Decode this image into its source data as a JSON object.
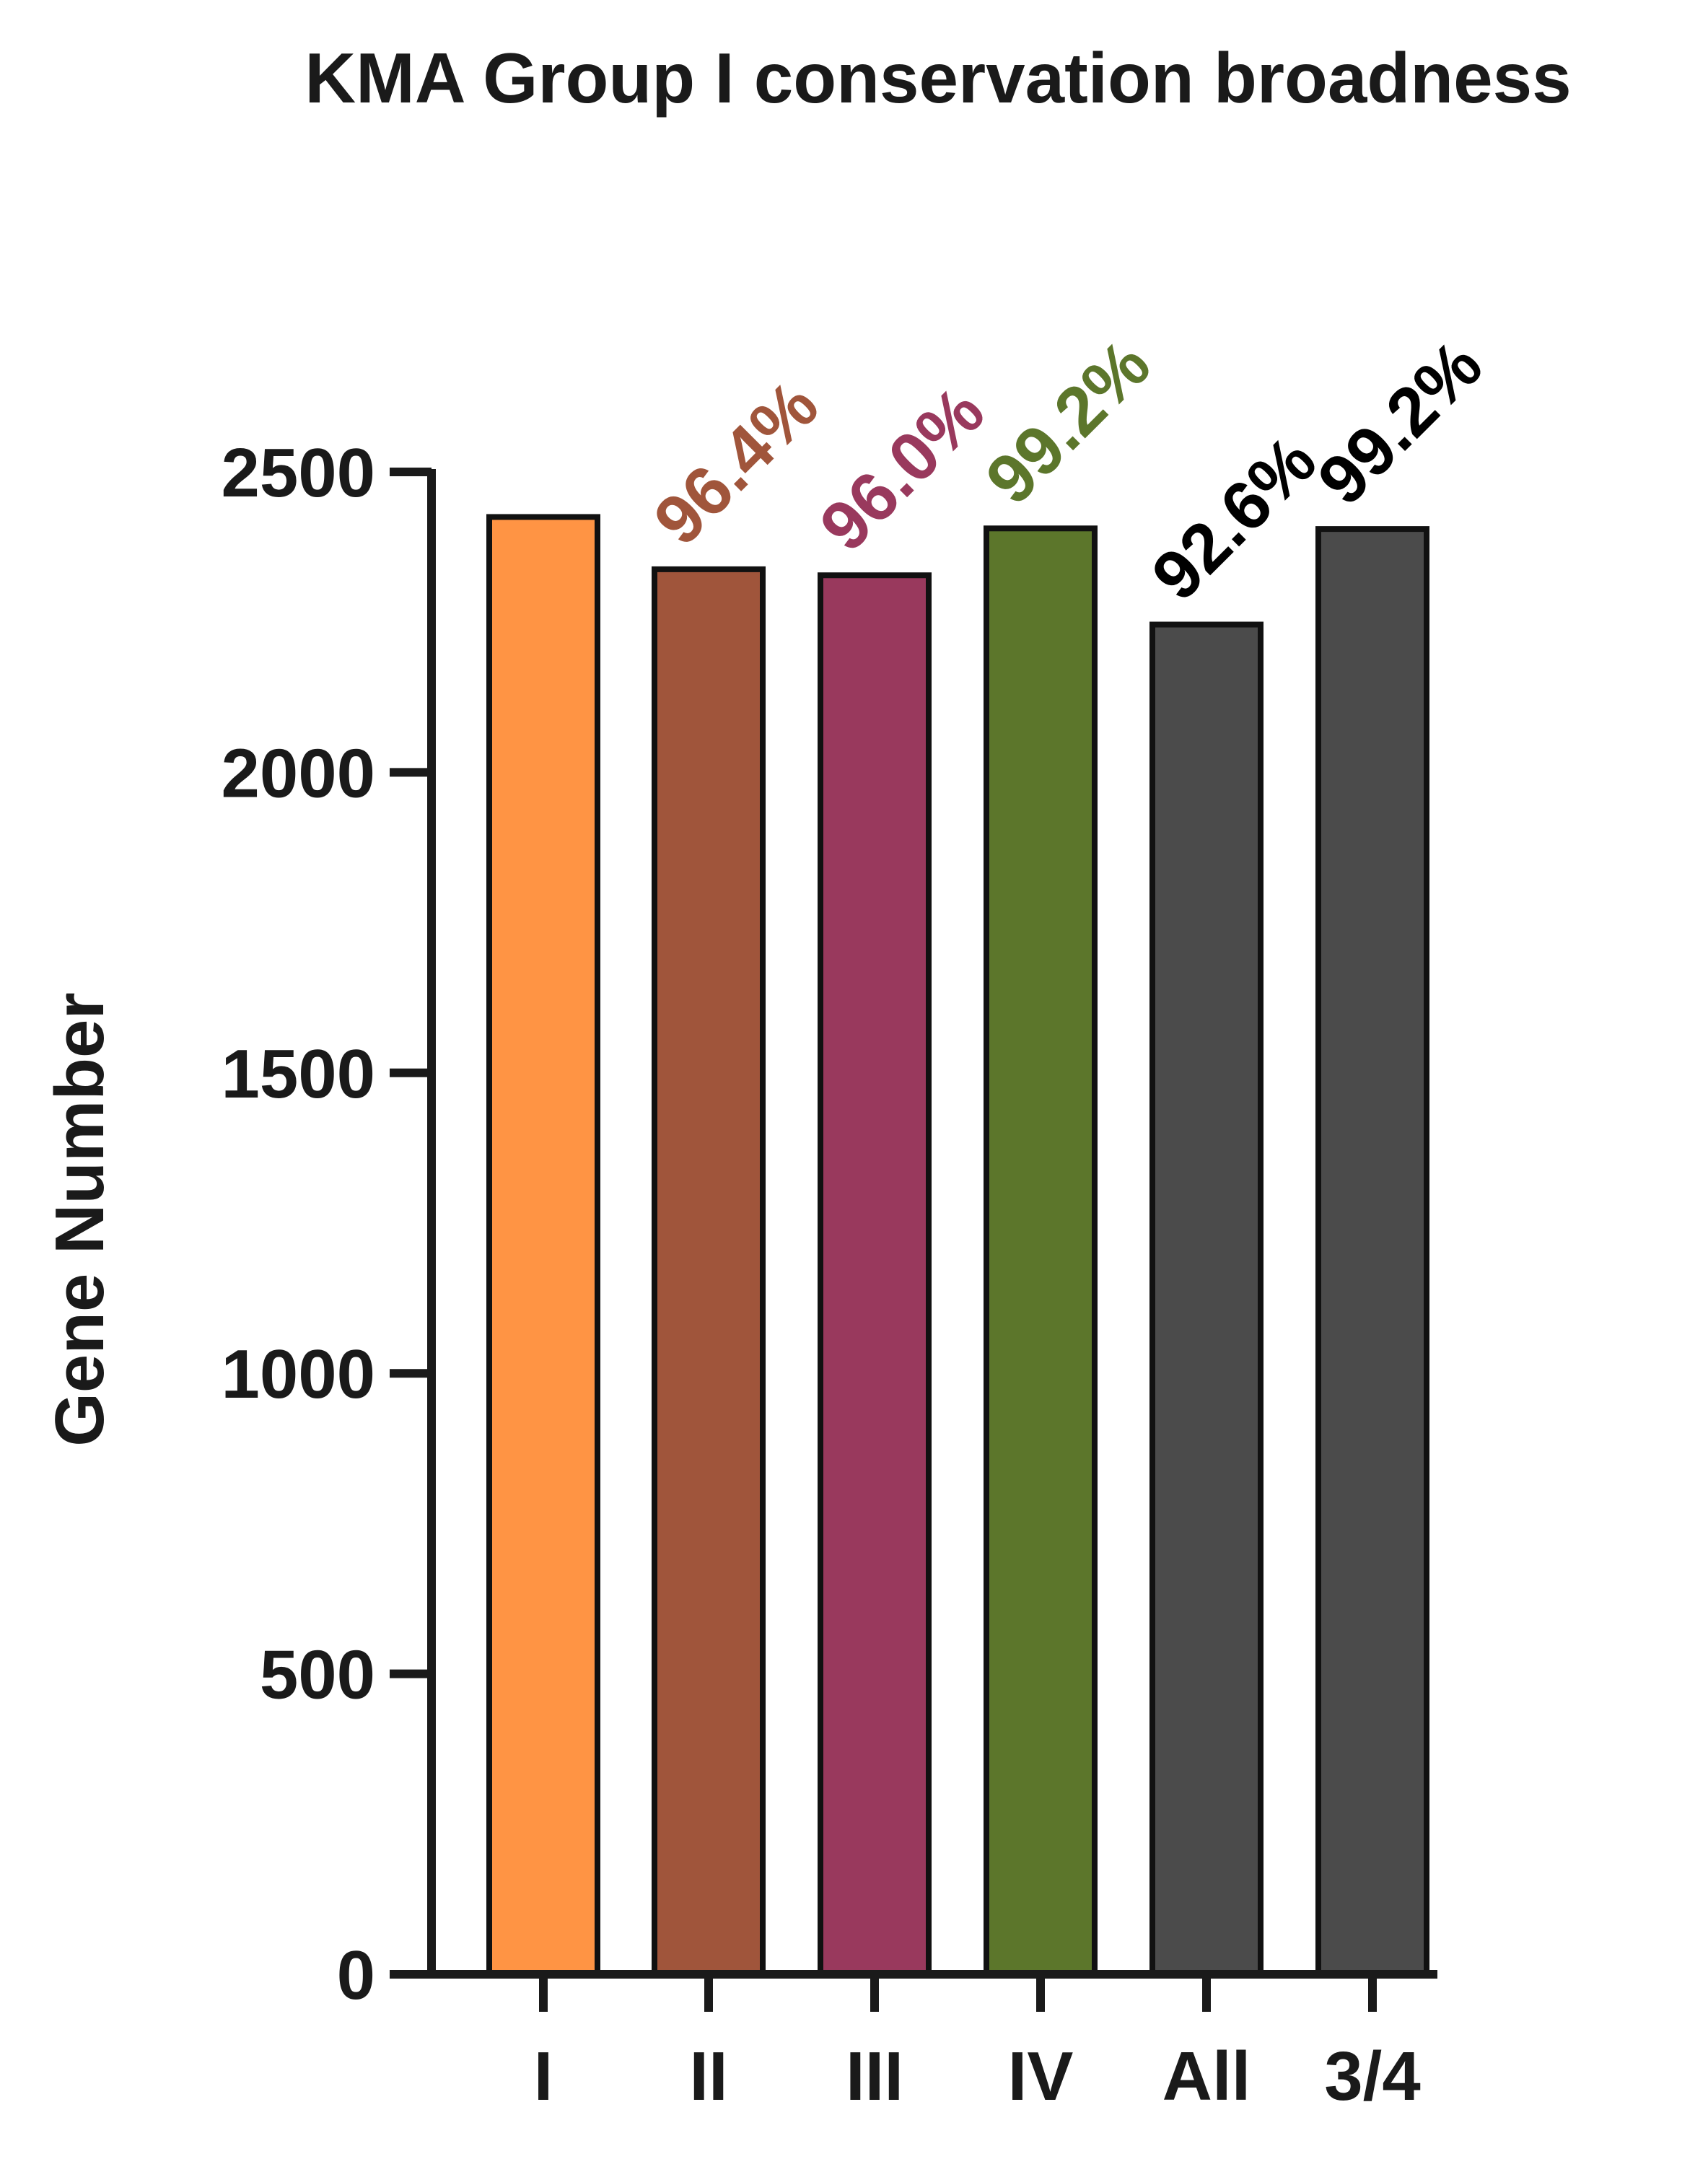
{
  "chart_data": {
    "type": "bar",
    "title": "KMA Group I conservation broadness",
    "xlabel": "",
    "ylabel": "Gene Number",
    "ylim": [
      0,
      2500
    ],
    "yticks": [
      "0",
      "500",
      "1000",
      "1500",
      "2000",
      "2500"
    ],
    "categories": [
      "I",
      "II",
      "III",
      "IV",
      "All",
      "3/4"
    ],
    "values": [
      2425,
      2338,
      2328,
      2406,
      2246,
      2405
    ],
    "bar_colors": [
      "#ff9444",
      "#a0553b",
      "#99395d",
      "#5c762b",
      "#4b4b4b",
      "#4b4b4b"
    ],
    "annotations": [
      {
        "category": "II",
        "text": "96.4%",
        "color": "#a0553b"
      },
      {
        "category": "III",
        "text": "96.0%",
        "color": "#99395d"
      },
      {
        "category": "IV",
        "text": "99.2%",
        "color": "#5c762b"
      },
      {
        "category": "All",
        "text": "92.6%",
        "color": "#000000"
      },
      {
        "category": "3/4",
        "text": "99.2%",
        "color": "#000000"
      }
    ],
    "grid": false,
    "legend": "none"
  }
}
